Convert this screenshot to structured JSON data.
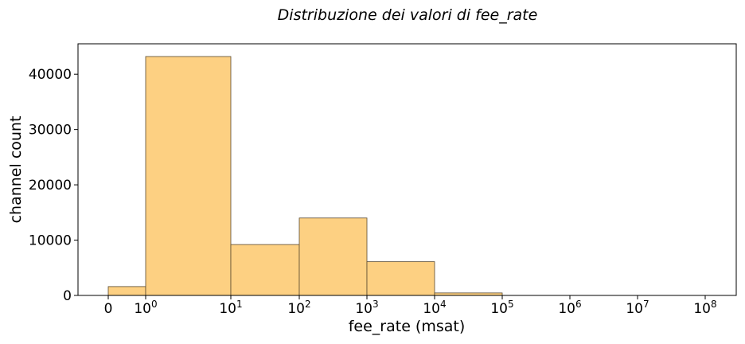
{
  "chart_data": {
    "type": "bar",
    "title": "Distribuzione dei valori di fee_rate",
    "xlabel": "fee_rate (msat)",
    "ylabel": "channel count",
    "x_scale": "symlog",
    "ylim": [
      0,
      45500
    ],
    "y_ticks": [
      0,
      10000,
      20000,
      30000,
      40000
    ],
    "x_ticks": [
      {
        "base": "0",
        "exp": ""
      },
      {
        "base": "10",
        "exp": "0"
      },
      {
        "base": "10",
        "exp": "1"
      },
      {
        "base": "10",
        "exp": "2"
      },
      {
        "base": "10",
        "exp": "3"
      },
      {
        "base": "10",
        "exp": "4"
      },
      {
        "base": "10",
        "exp": "5"
      },
      {
        "base": "10",
        "exp": "6"
      },
      {
        "base": "10",
        "exp": "7"
      },
      {
        "base": "10",
        "exp": "8"
      }
    ],
    "bins": [
      {
        "from": "0",
        "to": "10^0",
        "count": 1600
      },
      {
        "from": "10^0",
        "to": "10^1",
        "count": 43200
      },
      {
        "from": "10^1",
        "to": "10^2",
        "count": 9200
      },
      {
        "from": "10^2",
        "to": "10^3",
        "count": 14000
      },
      {
        "from": "10^3",
        "to": "10^4",
        "count": 6100
      },
      {
        "from": "10^4",
        "to": "10^5",
        "count": 450
      }
    ],
    "bar_color": "#fdd082",
    "bar_edge_color": "#5a4a30",
    "grid": false,
    "legend": "none"
  }
}
